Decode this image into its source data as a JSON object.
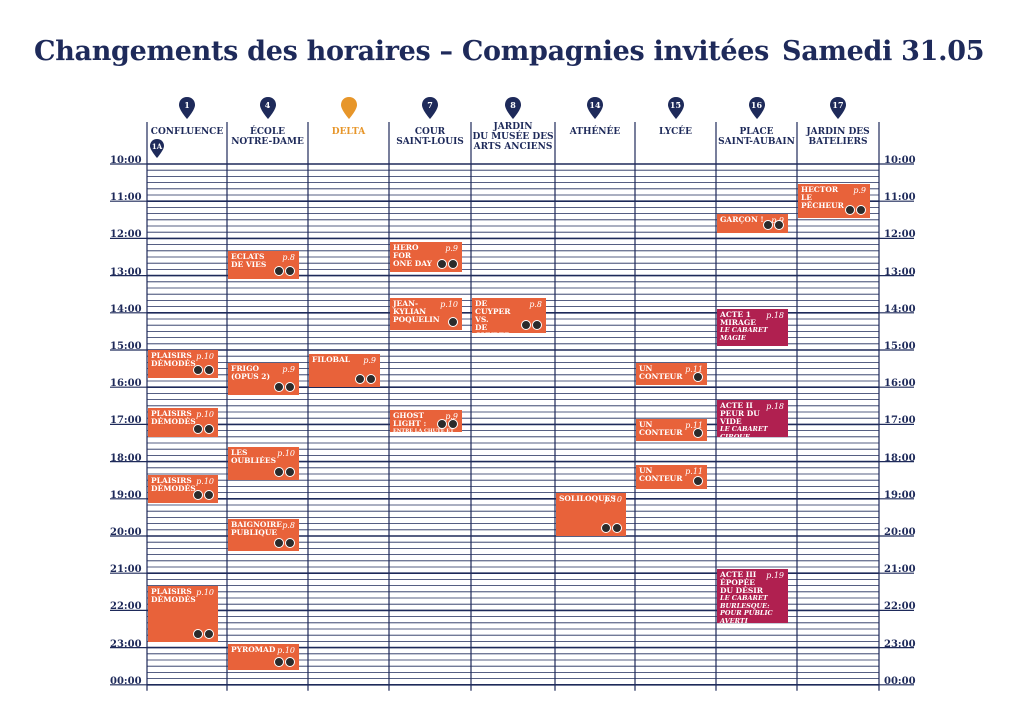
{
  "header": {
    "title": "Changements des horaires – Compagnies invitées",
    "date": "Samedi 31.05"
  },
  "colors": {
    "navy": "#1e2a5a",
    "orange": "#e8623a",
    "maroon": "#b02050",
    "delta": "#e7962a"
  },
  "venues": [
    {
      "num": "1",
      "name": "CONFLUENCE",
      "badge": "1A"
    },
    {
      "num": "4",
      "name": "ÉCOLE\nNOTRE-DAME"
    },
    {
      "num": "",
      "name": "DELTA",
      "highlight": true
    },
    {
      "num": "7",
      "name": "COUR\nSAINT-LOUIS"
    },
    {
      "num": "8",
      "name": "JARDIN\nDU MUSÉE DES\nARTS ANCIENS"
    },
    {
      "num": "14",
      "name": "ATHÉNÉE"
    },
    {
      "num": "15",
      "name": "LYCÉE"
    },
    {
      "num": "16",
      "name": "PLACE\nSAINT-AUBAIN"
    },
    {
      "num": "17",
      "name": "JARDIN DES\nBATELIERS"
    }
  ],
  "times": [
    "10:00",
    "11:00",
    "12:00",
    "13:00",
    "14:00",
    "15:00",
    "16:00",
    "17:00",
    "18:00",
    "19:00",
    "20:00",
    "21:00",
    "22:00",
    "23:00",
    "00:00"
  ],
  "events": [
    {
      "col": 0,
      "start": 15.0,
      "end": 15.75,
      "title": "PLAISIRS\nDÉMODÉS",
      "page": "p.10",
      "icons": [
        "mask-icon",
        "music-icon"
      ],
      "color": "orange"
    },
    {
      "col": 0,
      "start": 16.55,
      "end": 17.35,
      "title": "PLAISIRS\nDÉMODÉS",
      "page": "p.10",
      "icons": [
        "mask-icon",
        "music-icon"
      ],
      "color": "orange"
    },
    {
      "col": 0,
      "start": 18.35,
      "end": 19.1,
      "title": "PLAISIRS\nDÉMODÉS",
      "page": "p.10",
      "icons": [
        "mask-icon",
        "music-icon"
      ],
      "color": "orange"
    },
    {
      "col": 0,
      "start": 21.35,
      "end": 22.85,
      "title": "PLAISIRS\nDÉMODÉS",
      "page": "p.10",
      "icons": [
        "mask-icon",
        "music-icon"
      ],
      "color": "orange"
    },
    {
      "col": 1,
      "start": 12.35,
      "end": 13.1,
      "title": "ECLATS\nDE VIES",
      "page": "p.8",
      "icons": [
        "juggle-icon",
        "hat-icon"
      ],
      "color": "orange"
    },
    {
      "col": 1,
      "start": 15.35,
      "end": 16.2,
      "title": "FRIGO\n(OPUS 2)",
      "page": "p.9",
      "icons": [
        "mask-icon",
        "music-icon"
      ],
      "color": "orange"
    },
    {
      "col": 1,
      "start": 17.6,
      "end": 18.5,
      "title": "LES\nOUBLIÉES",
      "page": "p.10",
      "icons": [
        "juggle-icon",
        "acrobat-icon"
      ],
      "color": "orange"
    },
    {
      "col": 1,
      "start": 19.55,
      "end": 20.4,
      "title": "BAIGNOIRE\nPUBLIQUE",
      "page": "p.8",
      "icons": [
        "mask-icon",
        "acrobat-icon"
      ],
      "color": "orange"
    },
    {
      "col": 1,
      "start": 22.9,
      "end": 23.6,
      "title": "PYROMAD",
      "page": "p.10",
      "icons": [
        "mask-icon",
        "fire-icon"
      ],
      "color": "orange"
    },
    {
      "col": 2,
      "start": 15.1,
      "end": 16.0,
      "title": "FILOBAL",
      "page": "p.9",
      "icons": [
        "juggle-icon",
        "fire-icon"
      ],
      "color": "orange"
    },
    {
      "col": 3,
      "start": 12.1,
      "end": 12.9,
      "title": "HERO FOR\nONE DAY",
      "page": "p.9",
      "icons": [
        "mask-icon",
        "acrobat-icon"
      ],
      "color": "orange"
    },
    {
      "col": 3,
      "start": 13.6,
      "end": 14.45,
      "title": "JEAN-KYLIAN\nPOQUELIN",
      "page": "p.10",
      "icons": [
        "mask-icon"
      ],
      "color": "orange"
    },
    {
      "col": 3,
      "start": 16.6,
      "end": 17.2,
      "title": "GHOST\nLIGHT :",
      "sub": "ENTRE LA CHUTE ET L'ENVOL",
      "page": "p.9",
      "icons": [
        "mask-icon",
        "acrobat-icon"
      ],
      "color": "orange"
    },
    {
      "col": 4,
      "start": 13.6,
      "end": 14.55,
      "title": "DE CUYPER\nVS.\nDE CUYPER",
      "page": "p.8",
      "icons": [
        "fire-icon",
        "mask-icon"
      ],
      "color": "orange"
    },
    {
      "col": 5,
      "start": 18.85,
      "end": 20.0,
      "title": "SOLILOQUES",
      "page": "p.10",
      "icons": [
        "acrobat-icon",
        "juggle-icon"
      ],
      "color": "orange"
    },
    {
      "col": 6,
      "start": 15.35,
      "end": 15.95,
      "title": "UN\nCONTEUR",
      "page": "p.11",
      "icons": [
        "hat-icon"
      ],
      "color": "orange"
    },
    {
      "col": 6,
      "start": 16.85,
      "end": 17.45,
      "title": "UN\nCONTEUR",
      "page": "p.11",
      "icons": [
        "hat-icon"
      ],
      "color": "orange"
    },
    {
      "col": 6,
      "start": 18.1,
      "end": 18.75,
      "title": "UN\nCONTEUR",
      "page": "p.11",
      "icons": [
        "hat-icon"
      ],
      "color": "orange"
    },
    {
      "col": 7,
      "start": 11.35,
      "end": 11.85,
      "title": "GARÇON !",
      "page": "p.9",
      "icons": [
        "acrobat-icon",
        "hat-icon"
      ],
      "color": "orange"
    },
    {
      "col": 7,
      "start": 13.9,
      "end": 14.9,
      "title": "ACTE 1\nMIRAGE",
      "sub": "LE CABARET\nMAGIE",
      "page": "p.18",
      "icons": [],
      "color": "maroon"
    },
    {
      "col": 7,
      "start": 16.35,
      "end": 17.35,
      "title": "ACTE II\nPEUR DU\nVIDE",
      "sub": "LE CABARET CIRQUE",
      "page": "p.18",
      "icons": [],
      "color": "maroon"
    },
    {
      "col": 7,
      "start": 20.9,
      "end": 22.35,
      "title": "ACTE III\nÉPOPÉE\nDU DÉSIR",
      "sub": "LE CABARET\nBURLESQUE:\nPOUR PUBLIC AVERTI",
      "page": "p.19",
      "icons": [],
      "color": "maroon"
    },
    {
      "col": 8,
      "start": 10.55,
      "end": 11.45,
      "title": "HECTOR\nLE PÊCHEUR",
      "page": "p.9",
      "icons": [
        "fire-icon",
        "mask-icon"
      ],
      "color": "orange"
    }
  ]
}
